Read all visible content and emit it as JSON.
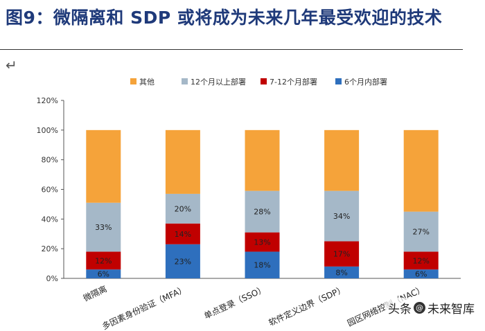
{
  "figure": {
    "title": "图9：微隔离和 SDP 或将成为未来几年最受欢迎的技术",
    "return_mark": "↵",
    "watermark_prefix": "头条",
    "watermark_at": "@",
    "watermark_name": "未来智库"
  },
  "chart_data": {
    "type": "bar",
    "stacked": true,
    "categories": [
      "微隔离",
      "多因素身份验证（MFA）",
      "单点登录（SSO）",
      "软件定义边界（SDP）",
      "园区网络控制（NAC）"
    ],
    "series": [
      {
        "name": "6个月内部署",
        "color": "#2e6fbd",
        "values": [
          6,
          23,
          18,
          8,
          6
        ],
        "labels": [
          "6%",
          "23%",
          "18%",
          "8%",
          "6%"
        ]
      },
      {
        "name": "7-12个月部署",
        "color": "#c00000",
        "values": [
          12,
          14,
          13,
          17,
          12
        ],
        "labels": [
          "12%",
          "14%",
          "13%",
          "17%",
          "12%"
        ]
      },
      {
        "name": "12个月以上部署",
        "color": "#a5b8c8",
        "values": [
          33,
          20,
          28,
          34,
          27
        ],
        "labels": [
          "33%",
          "20%",
          "28%",
          "34%",
          "27%"
        ]
      },
      {
        "name": "其他",
        "color": "#f5a33a",
        "values": [
          49,
          43,
          41,
          41,
          55
        ],
        "labels": [
          "",
          "",
          "",
          "",
          ""
        ]
      }
    ],
    "legend_order": [
      3,
      2,
      1,
      0
    ],
    "legend_position": "top",
    "ylim": [
      0,
      120
    ],
    "yticks": [
      0,
      20,
      40,
      60,
      80,
      100,
      120
    ],
    "ytick_labels": [
      "0%",
      "20%",
      "40%",
      "60%",
      "80%",
      "100%",
      "120%"
    ],
    "grid": false
  }
}
